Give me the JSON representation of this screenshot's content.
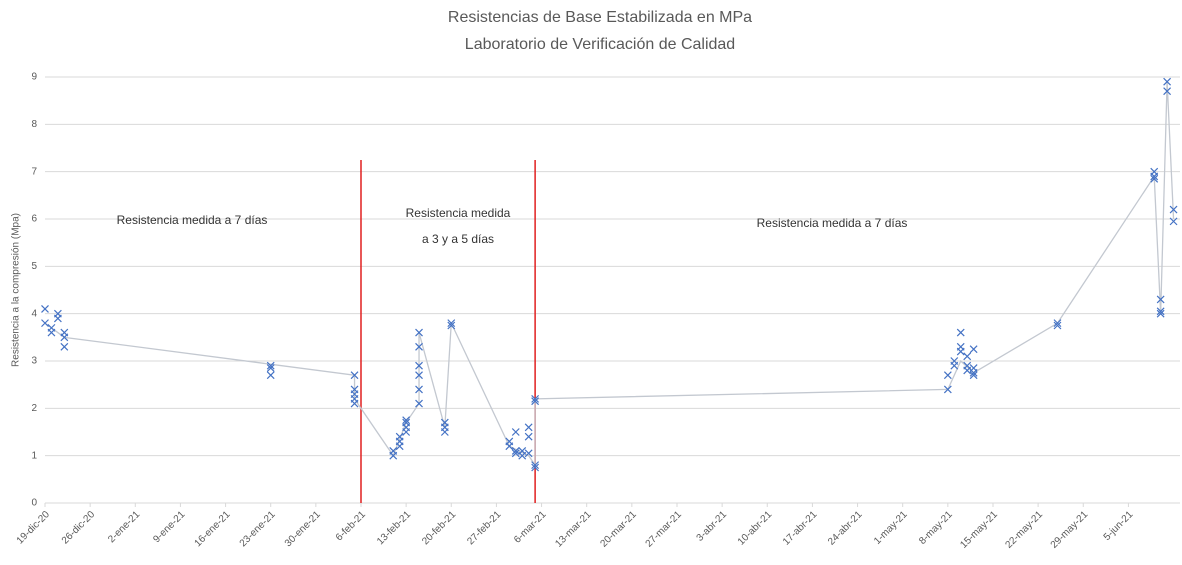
{
  "chart_data": {
    "type": "scatter",
    "title": "Resistencias de Base Estabilizada en MPa",
    "subtitle": "Laboratorio de Verificación de Calidad",
    "ylabel": "Resistencia a la compresión (Mpa)",
    "xlim": [
      "2020-12-19",
      "2021-06-13"
    ],
    "xticks": [
      {
        "value": "2020-12-19",
        "label": "19-dic-20"
      },
      {
        "value": "2020-12-26",
        "label": "26-dic-20"
      },
      {
        "value": "2021-01-02",
        "label": "2-ene-21"
      },
      {
        "value": "2021-01-09",
        "label": "9-ene-21"
      },
      {
        "value": "2021-01-16",
        "label": "16-ene-21"
      },
      {
        "value": "2021-01-23",
        "label": "23-ene-21"
      },
      {
        "value": "2021-01-30",
        "label": "30-ene-21"
      },
      {
        "value": "2021-02-06",
        "label": "6-feb-21"
      },
      {
        "value": "2021-02-13",
        "label": "13-feb-21"
      },
      {
        "value": "2021-02-20",
        "label": "20-feb-21"
      },
      {
        "value": "2021-02-27",
        "label": "27-feb-21"
      },
      {
        "value": "2021-03-06",
        "label": "6-mar-21"
      },
      {
        "value": "2021-03-13",
        "label": "13-mar-21"
      },
      {
        "value": "2021-03-20",
        "label": "20-mar-21"
      },
      {
        "value": "2021-03-27",
        "label": "27-mar-21"
      },
      {
        "value": "2021-04-03",
        "label": "3-abr-21"
      },
      {
        "value": "2021-04-10",
        "label": "10-abr-21"
      },
      {
        "value": "2021-04-17",
        "label": "17-abr-21"
      },
      {
        "value": "2021-04-24",
        "label": "24-abr-21"
      },
      {
        "value": "2021-05-01",
        "label": "1-may-21"
      },
      {
        "value": "2021-05-08",
        "label": "8-may-21"
      },
      {
        "value": "2021-05-15",
        "label": "15-may-21"
      },
      {
        "value": "2021-05-22",
        "label": "22-may-21"
      },
      {
        "value": "2021-05-29",
        "label": "29-may-21"
      },
      {
        "value": "2021-06-05",
        "label": "5-jun-21"
      }
    ],
    "ylim": [
      0,
      9
    ],
    "yticks": [
      0,
      1,
      2,
      3,
      4,
      5,
      6,
      7,
      8,
      9
    ],
    "grid": true,
    "vlines": [
      "2021-02-06",
      "2021-03-05"
    ],
    "vline_color": "#e02020",
    "annotations": [
      "Resistencia medida a 7 días",
      "Resistencia medida",
      "a 3 y a 5 días",
      "Resistencia medida a 7 días"
    ],
    "series": [
      {
        "type": "line",
        "color": "#c3c8d0",
        "x": [
          "2020-12-19",
          "2020-12-22",
          "2021-02-05",
          "2021-02-05",
          "2021-02-11",
          "2021-02-13",
          "2021-02-15",
          "2021-02-15",
          "2021-02-19",
          "2021-02-20",
          "2021-03-01",
          "2021-03-04",
          "2021-03-05",
          "2021-03-05",
          "2021-05-08",
          "2021-05-10",
          "2021-05-12",
          "2021-05-25",
          "2021-06-09",
          "2021-06-10",
          "2021-06-11",
          "2021-06-12"
        ],
        "values": [
          3.8,
          3.5,
          2.7,
          2.2,
          1.0,
          1.7,
          2.1,
          3.6,
          1.6,
          3.8,
          1.2,
          1.0,
          0.8,
          2.2,
          2.4,
          3.0,
          2.75,
          3.8,
          6.9,
          4.0,
          8.9,
          6.0
        ]
      },
      {
        "type": "scatter",
        "marker": "x",
        "color": "#4472c4",
        "x": [
          "2020-12-19",
          "2020-12-19",
          "2020-12-20",
          "2020-12-20",
          "2020-12-21",
          "2020-12-21",
          "2020-12-22",
          "2020-12-22",
          "2020-12-22",
          "2021-01-23",
          "2021-01-23",
          "2021-01-23",
          "2021-02-05",
          "2021-02-05",
          "2021-02-05",
          "2021-02-05",
          "2021-02-05",
          "2021-02-11",
          "2021-02-11",
          "2021-02-12",
          "2021-02-12",
          "2021-02-12",
          "2021-02-13",
          "2021-02-13",
          "2021-02-13",
          "2021-02-13",
          "2021-02-15",
          "2021-02-15",
          "2021-02-15",
          "2021-02-15",
          "2021-02-15",
          "2021-02-15",
          "2021-02-19",
          "2021-02-19",
          "2021-02-19",
          "2021-02-20",
          "2021-02-20",
          "2021-03-01",
          "2021-03-01",
          "2021-03-02",
          "2021-03-02",
          "2021-03-02",
          "2021-03-03",
          "2021-03-03",
          "2021-03-04",
          "2021-03-04",
          "2021-03-04",
          "2021-03-05",
          "2021-03-05",
          "2021-03-05",
          "2021-03-05",
          "2021-05-08",
          "2021-05-08",
          "2021-05-09",
          "2021-05-09",
          "2021-05-10",
          "2021-05-10",
          "2021-05-10",
          "2021-05-11",
          "2021-05-11",
          "2021-05-11",
          "2021-05-12",
          "2021-05-12",
          "2021-05-12",
          "2021-05-12",
          "2021-05-25",
          "2021-05-25",
          "2021-06-09",
          "2021-06-09",
          "2021-06-09",
          "2021-06-10",
          "2021-06-10",
          "2021-06-10",
          "2021-06-11",
          "2021-06-11",
          "2021-06-12",
          "2021-06-12"
        ],
        "values": [
          4.1,
          3.8,
          3.7,
          3.6,
          3.9,
          4.0,
          3.6,
          3.5,
          3.3,
          2.9,
          2.85,
          2.7,
          2.7,
          2.4,
          2.3,
          2.2,
          2.1,
          1.0,
          1.1,
          1.2,
          1.3,
          1.4,
          1.5,
          1.6,
          1.7,
          1.75,
          3.6,
          3.3,
          2.9,
          2.7,
          2.4,
          2.1,
          1.7,
          1.6,
          1.5,
          3.8,
          3.75,
          1.2,
          1.3,
          1.5,
          1.1,
          1.05,
          1.0,
          1.1,
          1.6,
          1.4,
          1.05,
          0.8,
          0.75,
          2.2,
          2.15,
          2.4,
          2.7,
          2.9,
          3.0,
          3.6,
          3.3,
          3.2,
          3.1,
          2.9,
          2.8,
          2.75,
          3.25,
          2.85,
          2.7,
          3.8,
          3.75,
          7.0,
          6.9,
          6.85,
          4.3,
          4.05,
          4.0,
          8.9,
          8.7,
          6.2,
          5.95
        ]
      }
    ]
  }
}
